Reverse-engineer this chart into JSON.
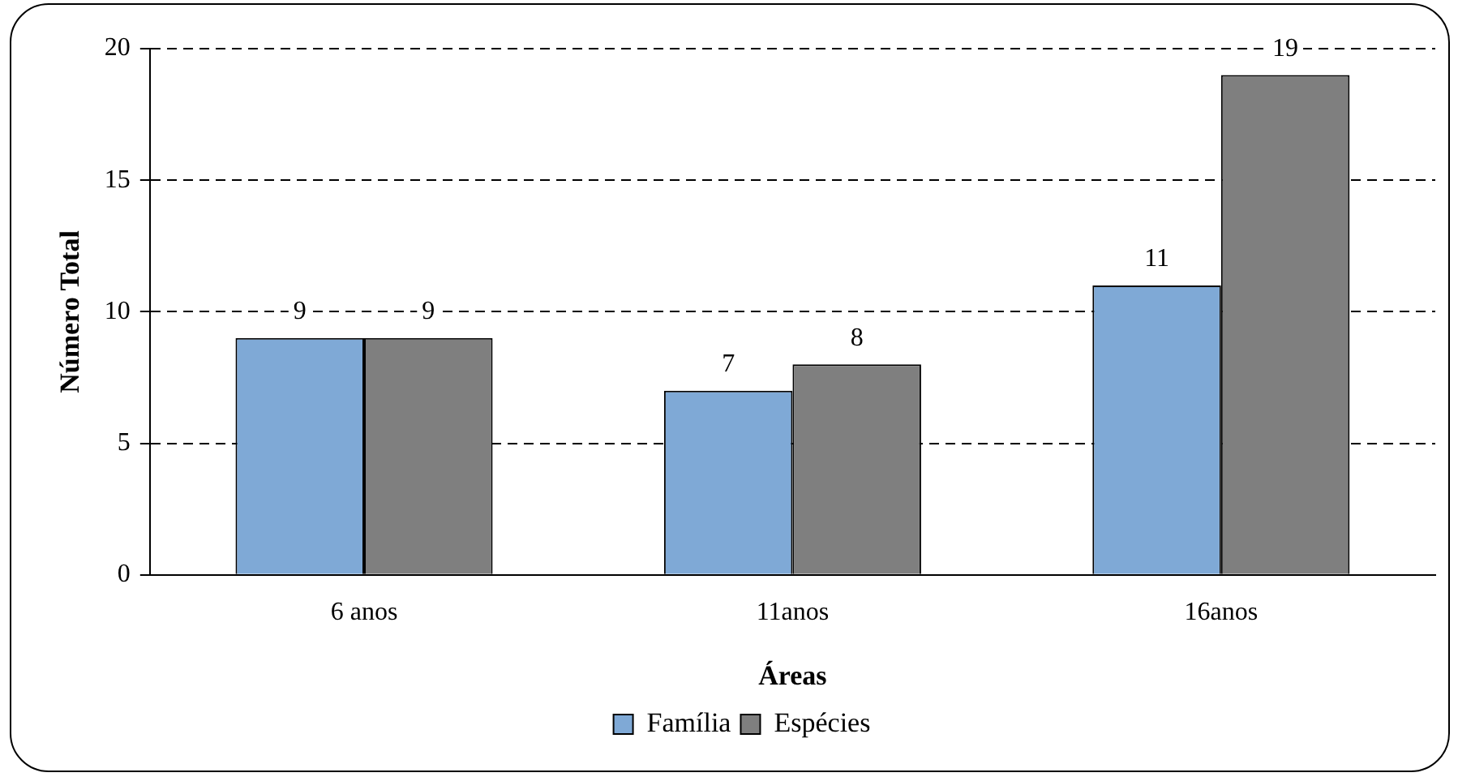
{
  "chart_data": {
    "type": "bar",
    "xlabel": "Áreas",
    "ylabel": "Número Total",
    "categories": [
      "6 anos",
      "11anos",
      "16anos"
    ],
    "series": [
      {
        "name": "Família",
        "color": "#7fa9d6",
        "values": [
          9,
          7,
          11
        ]
      },
      {
        "name": "Espécies",
        "color": "#7f7f7f",
        "values": [
          9,
          8,
          19
        ]
      }
    ],
    "ylim": [
      0,
      20
    ],
    "yticks": [
      0,
      5,
      10,
      15,
      20
    ],
    "grid": "y",
    "legend": "bottom",
    "data_labels": true
  }
}
